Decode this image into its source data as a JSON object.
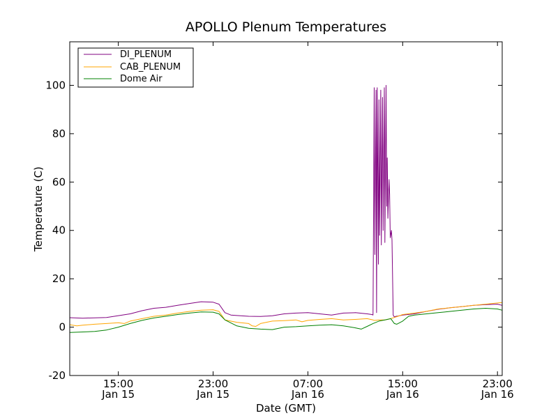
{
  "chart_data": {
    "type": "line",
    "title": "APOLLO Plenum Temperatures",
    "xlabel": "Date (GMT)",
    "ylabel": "Temperature (C)",
    "x_unit": "hours since Jan 15 00:00 GMT",
    "xlim": [
      10.9,
      47.4
    ],
    "ylim": [
      -20,
      118
    ],
    "yticks": [
      -20,
      0,
      20,
      40,
      60,
      80,
      100
    ],
    "xticks": [
      {
        "value": 15,
        "line1": "15:00",
        "line2": "Jan 15"
      },
      {
        "value": 23,
        "line1": "23:00",
        "line2": "Jan 15"
      },
      {
        "value": 31,
        "line1": "07:00",
        "line2": "Jan 16"
      },
      {
        "value": 39,
        "line1": "15:00",
        "line2": "Jan 16"
      },
      {
        "value": 47,
        "line1": "23:00",
        "line2": "Jan 16"
      }
    ],
    "legend_position": "upper-left",
    "grid": false,
    "series": [
      {
        "name": "DI_PLENUM",
        "color": "#800080",
        "x": [
          10.9,
          12,
          14,
          16,
          17,
          18,
          19,
          20,
          21,
          22,
          23,
          23.5,
          24,
          24.5,
          25,
          26,
          27,
          28,
          29,
          30,
          31,
          32,
          33,
          34,
          35,
          36,
          36.4,
          36.5,
          36.6,
          36.65,
          36.75,
          36.8,
          36.85,
          36.95,
          37.0,
          37.05,
          37.15,
          37.2,
          37.3,
          37.35,
          37.45,
          37.5,
          37.6,
          37.65,
          37.7,
          37.75,
          37.85,
          37.9,
          37.95,
          38.05,
          38.1,
          38.2,
          38.3,
          38.45,
          38.6,
          39,
          40,
          41,
          42,
          43,
          44,
          45,
          46,
          47,
          47.4
        ],
        "values": [
          3.9,
          3.7,
          4.0,
          5.5,
          6.8,
          7.8,
          8.2,
          9.0,
          9.8,
          10.5,
          10.3,
          9.5,
          6.0,
          5.0,
          4.8,
          4.5,
          4.4,
          4.7,
          5.5,
          5.8,
          6.0,
          5.5,
          5.0,
          5.8,
          6.0,
          5.5,
          5.2,
          5.0,
          99,
          30,
          98,
          6,
          99,
          26,
          94,
          38,
          98,
          34,
          95,
          40,
          99,
          35,
          100,
          50,
          70,
          45,
          61,
          55,
          37,
          40,
          36,
          5,
          4.2,
          4.5,
          4.6,
          5.0,
          5.5,
          6.5,
          7.4,
          8.0,
          8.5,
          9.0,
          9.3,
          9.5,
          9.0
        ]
      },
      {
        "name": "CAB_PLENUM",
        "color": "#FFA500",
        "x": [
          10.9,
          11.5,
          12,
          13,
          14,
          15,
          15.5,
          16,
          17,
          18,
          19,
          20,
          21,
          22,
          23,
          23.5,
          24,
          25,
          26,
          26.3,
          26.6,
          27,
          27.5,
          28,
          29,
          30,
          30.5,
          31,
          32,
          33,
          34,
          35,
          36,
          36.5,
          36.6,
          37,
          37.5,
          38,
          38.3,
          38.6,
          39,
          40,
          41,
          42,
          43,
          44,
          45,
          46,
          47,
          47.4
        ],
        "values": [
          1.0,
          0.5,
          0.8,
          1.2,
          1.5,
          1.8,
          1.5,
          2.5,
          3.5,
          4.5,
          5.0,
          5.8,
          6.5,
          7.0,
          7.2,
          6.5,
          3.0,
          2.0,
          1.5,
          0.5,
          0.3,
          1.5,
          2.0,
          2.5,
          2.7,
          3.0,
          2.2,
          2.8,
          3.2,
          3.5,
          3.0,
          3.2,
          3.5,
          3.0,
          2.8,
          3.0,
          3.0,
          3.5,
          4.0,
          4.5,
          5.2,
          5.8,
          6.5,
          7.5,
          8.0,
          8.5,
          9.0,
          9.5,
          10.0,
          10.2
        ]
      },
      {
        "name": "Dome Air",
        "color": "#008000",
        "x": [
          10.9,
          12,
          13,
          14,
          15,
          16,
          17,
          18,
          19,
          20,
          21,
          22,
          23,
          23.5,
          24,
          25,
          26,
          27,
          28,
          29,
          30,
          31,
          32,
          33,
          34,
          35,
          35.5,
          36,
          36.5,
          37,
          37.5,
          38,
          38.3,
          38.5,
          39,
          39.5,
          40,
          41,
          42,
          43,
          44,
          45,
          46,
          47,
          47.4
        ],
        "values": [
          -2.2,
          -2.0,
          -1.8,
          -1.2,
          0.0,
          1.5,
          2.8,
          3.8,
          4.5,
          5.2,
          5.8,
          6.3,
          6.2,
          5.5,
          3.0,
          0.5,
          -0.5,
          -0.8,
          -1.0,
          0.0,
          0.2,
          0.5,
          0.8,
          1.0,
          0.5,
          -0.3,
          -0.8,
          0.3,
          1.5,
          2.5,
          3.0,
          3.5,
          1.5,
          1.2,
          2.5,
          4.5,
          5.0,
          5.5,
          6.0,
          6.5,
          7.0,
          7.5,
          7.8,
          7.5,
          7.0
        ]
      }
    ]
  }
}
